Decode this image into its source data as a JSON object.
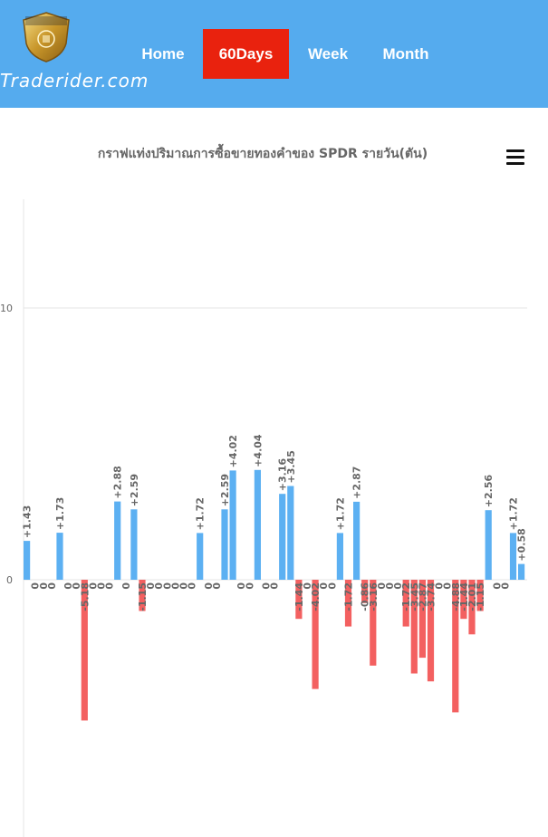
{
  "site": {
    "brand": "Traderider.com",
    "logo_text": "TRADE RIDER"
  },
  "nav": {
    "items": [
      {
        "label": "Home",
        "active": false
      },
      {
        "label": "60Days",
        "active": true
      },
      {
        "label": "Week",
        "active": false
      },
      {
        "label": "Month",
        "active": false
      }
    ]
  },
  "colors": {
    "header": "#55abee",
    "active_tab": "#e9220e",
    "positive": "#5cb0f2",
    "negative": "#f36060"
  },
  "chart_data": {
    "type": "bar",
    "title": "กราฟแท่งปริมาณการซื้อขายทองคำของ SPDR รายวัน(ตัน)",
    "xlabel": "",
    "ylabel": "",
    "ylim": [
      -10,
      14
    ],
    "yticks": [
      0,
      10
    ],
    "ytick_labels": [
      "0",
      "10"
    ],
    "grid": true,
    "values": [
      1.43,
      0,
      0,
      0,
      1.73,
      0,
      0,
      -5.18,
      0,
      0,
      0,
      2.88,
      0,
      2.59,
      -1.15,
      0,
      0,
      0,
      0,
      0,
      0,
      1.72,
      0,
      0,
      2.59,
      4.02,
      0,
      0,
      4.04,
      0,
      0,
      3.16,
      3.45,
      -1.44,
      0,
      -4.02,
      0,
      0,
      1.72,
      -1.72,
      2.87,
      -0.86,
      -3.16,
      0,
      0,
      0,
      -1.72,
      -3.45,
      -2.87,
      -3.74,
      0,
      0,
      -4.88,
      -1.44,
      -2.01,
      -1.15,
      2.56,
      0,
      0,
      1.72,
      0.58
    ],
    "labels": [
      "+1.43",
      "0",
      "0",
      "0",
      "+1.73",
      "0",
      "0",
      "-5.18",
      "0",
      "0",
      "0",
      "+2.88",
      "0",
      "+2.59",
      "-1.15",
      "0",
      "0",
      "0",
      "0",
      "0",
      "0",
      "+1.72",
      "0",
      "0",
      "+2.59",
      "+4.02",
      "0",
      "0",
      "+4.04",
      "0",
      "0",
      "+3.16",
      "+3.45",
      "-1.44",
      "0",
      "-4.02",
      "0",
      "0",
      "+1.72",
      "-1.72",
      "+2.87",
      "-0.86",
      "-3.16",
      "0",
      "0",
      "0",
      "-1.72",
      "-3.45",
      "-2.87",
      "-3.74",
      "0",
      "0",
      "-4.88",
      "-1.44",
      "-2.01",
      "-1.15",
      "+2.56",
      "0",
      "0",
      "+1.72",
      "+0.58"
    ]
  }
}
